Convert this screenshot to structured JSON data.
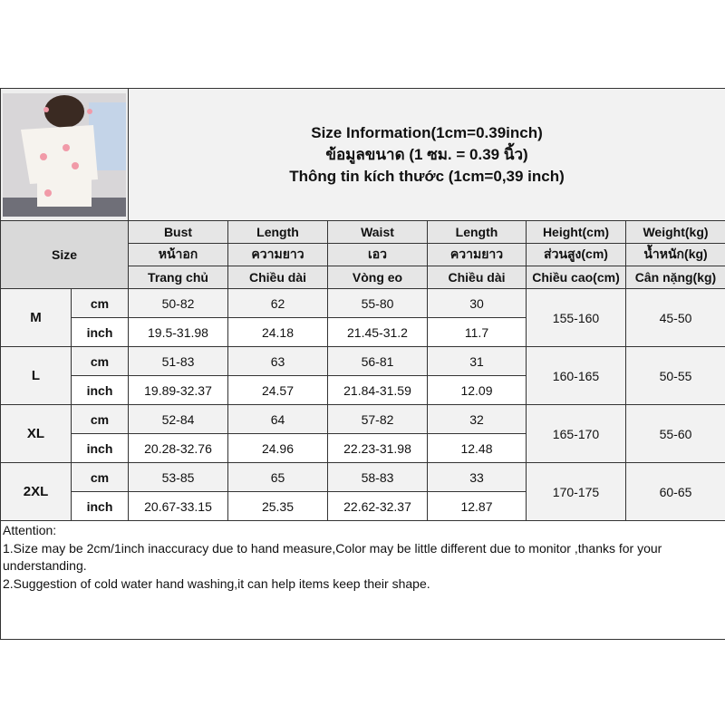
{
  "title": {
    "lines": [
      "Size Information(1cm=0.39inch)",
      "ข้อมูลขนาด (1 ซม. = 0.39 นิ้ว)",
      "Thông tin kích thước (1cm=0,39 inch)"
    ]
  },
  "size_label": "Size",
  "headers": [
    [
      "Bust",
      "Length",
      "Waist",
      "Length",
      "Height(cm)",
      "Weight(kg)"
    ],
    [
      "หน้าอก",
      "ความยาว",
      "เอว",
      "ความยาว",
      "ส่วนสูง(cm)",
      "น้ำหนัก(kg)"
    ],
    [
      "Trang chủ",
      "Chiều dài",
      "Vòng eo",
      "Chiều dài",
      "Chiều cao(cm)",
      "Cân nặng(kg)"
    ]
  ],
  "units": {
    "cm": "cm",
    "inch": "inch"
  },
  "rows": [
    {
      "size": "M",
      "cm": [
        "50-82",
        "62",
        "55-80",
        "30"
      ],
      "inch": [
        "19.5-31.98",
        "24.18",
        "21.45-31.2",
        "11.7"
      ],
      "height": "155-160",
      "weight": "45-50"
    },
    {
      "size": "L",
      "cm": [
        "51-83",
        "63",
        "56-81",
        "31"
      ],
      "inch": [
        "19.89-32.37",
        "24.57",
        "21.84-31.59",
        "12.09"
      ],
      "height": "160-165",
      "weight": "50-55"
    },
    {
      "size": "XL",
      "cm": [
        "52-84",
        "64",
        "57-82",
        "32"
      ],
      "inch": [
        "20.28-32.76",
        "24.96",
        "22.23-31.98",
        "12.48"
      ],
      "height": "165-170",
      "weight": "55-60"
    },
    {
      "size": "2XL",
      "cm": [
        "53-85",
        "65",
        "58-83",
        "33"
      ],
      "inch": [
        "20.67-33.15",
        "25.35",
        "22.62-32.37",
        "12.87"
      ],
      "height": "170-175",
      "weight": "60-65"
    }
  ],
  "attention": [
    "Attention:",
    "1.Size may be 2cm/1inch inaccuracy due to hand measure,Color may be little different due to monitor ,thanks for your understanding.",
    "2.Suggestion of cold water hand washing,it can help items keep their shape."
  ]
}
